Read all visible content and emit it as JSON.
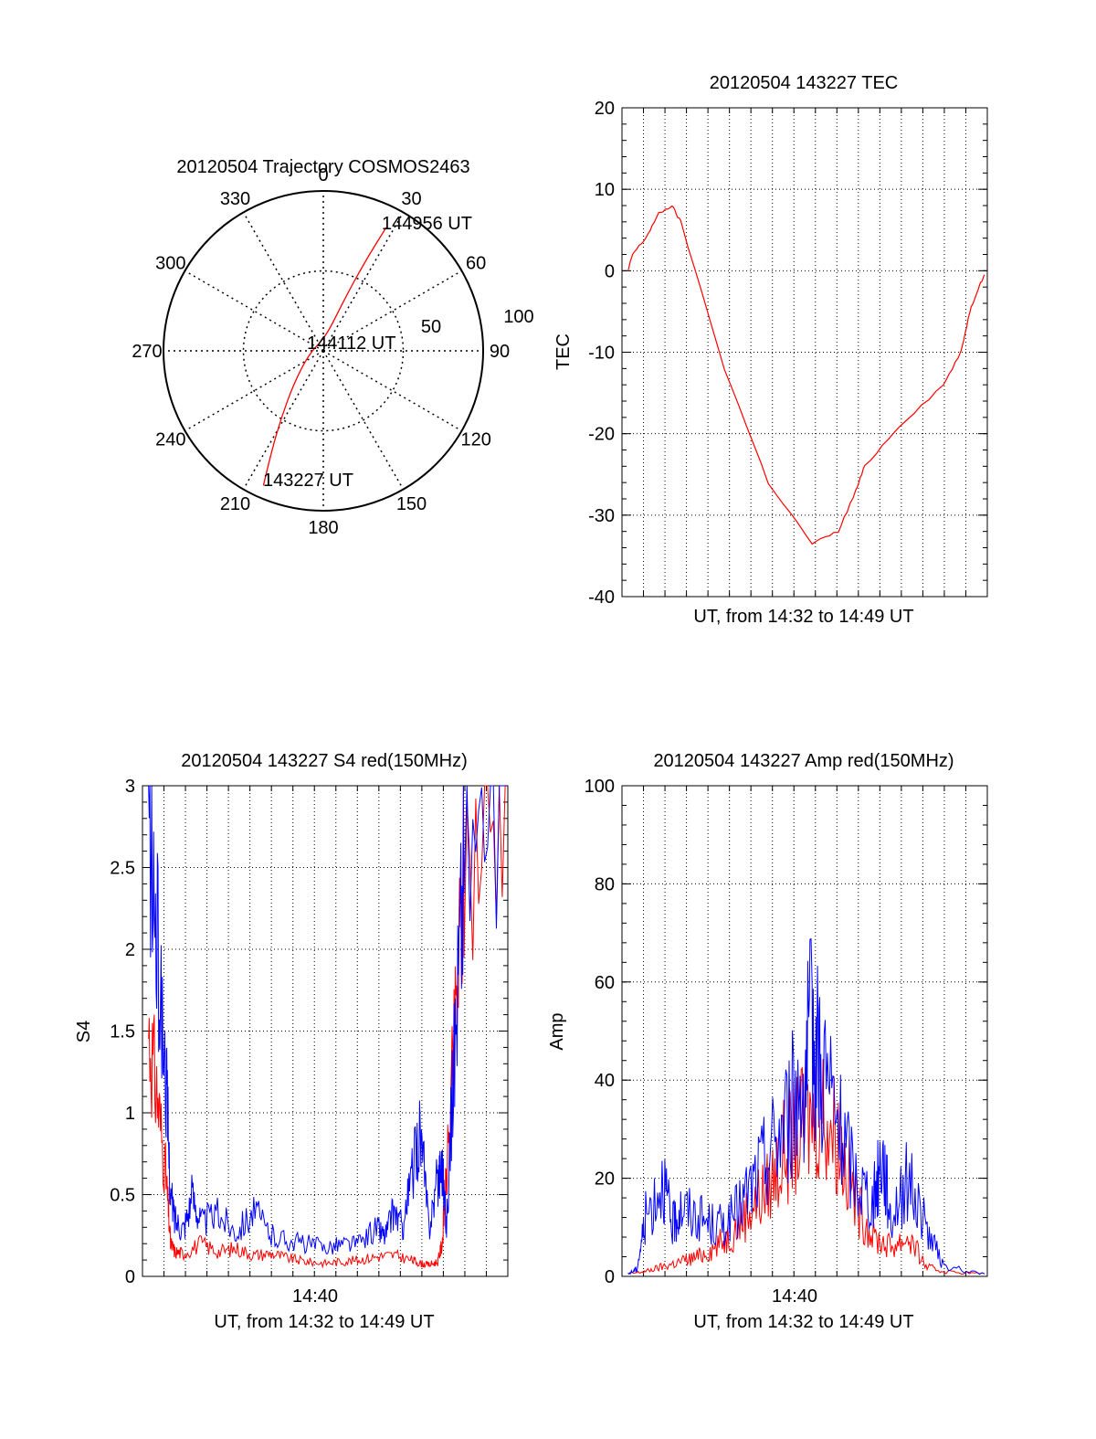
{
  "chart_data": [
    {
      "type": "polar",
      "title": "20120504 Trajectory COSMOS2463",
      "azimuth_labels": [
        "0",
        "30",
        "60",
        "90",
        "120",
        "150",
        "180",
        "210",
        "240",
        "270",
        "300",
        "330"
      ],
      "radial_labels": [
        "50",
        "100"
      ],
      "grid": true,
      "line_color": "#ff0000",
      "annotations": {
        "start": "143227 UT",
        "middle": "144112 UT",
        "end": "144956 UT"
      },
      "trajectory": [
        {
          "azimuth": 204,
          "zenith": 83
        },
        {
          "azimuth": 207,
          "zenith": 65
        },
        {
          "azimuth": 212,
          "zenith": 45
        },
        {
          "azimuth": 222,
          "zenith": 25
        },
        {
          "azimuth": 260,
          "zenith": 8
        },
        {
          "azimuth": 10,
          "zenith": 8
        },
        {
          "azimuth": 22,
          "zenith": 30
        },
        {
          "azimuth": 25,
          "zenith": 55
        },
        {
          "azimuth": 27,
          "zenith": 78
        }
      ]
    },
    {
      "type": "line",
      "title": "20120504 143227 TEC",
      "xlabel": "UT, from 14:32 to 14:49 UT",
      "ylabel": "TEC",
      "ylim": [
        -40,
        20
      ],
      "yticks": [
        "20",
        "10",
        "0",
        "-10",
        "-20",
        "-30",
        "-40"
      ],
      "grid": true,
      "series": [
        {
          "color": "#ff0000",
          "x": [
            14.54,
            14.545,
            14.56,
            14.575,
            14.59,
            14.6,
            14.65,
            14.7,
            14.75,
            14.78,
            14.8,
            14.81,
            14.85,
            14.9,
            14.92,
            14.93,
            14.94,
            14.947
          ],
          "values": [
            0,
            2,
            4,
            7,
            8,
            6,
            -12,
            -26,
            -33.5,
            -32,
            -27,
            -24,
            -19,
            -14,
            -10,
            -5,
            -2,
            -0.5
          ]
        }
      ]
    },
    {
      "type": "line",
      "title": "20120504 143227 S4 red(150MHz)",
      "xlabel": "UT, from 14:32 to 14:49 UT",
      "ylabel": "S4",
      "ylim": [
        0,
        3
      ],
      "yticks": [
        "0",
        "0.5",
        "1",
        "1.5",
        "2",
        "2.5",
        "3"
      ],
      "xticks": [
        "14:40"
      ],
      "grid": true,
      "series": [
        {
          "color": "#ff0000",
          "x": [
            14.54,
            14.55,
            14.56,
            14.565,
            14.57,
            14.58,
            14.6,
            14.62,
            14.64,
            14.66,
            14.68,
            14.7,
            14.72,
            14.74,
            14.76,
            14.78,
            14.8,
            14.82,
            14.84,
            14.85,
            14.86,
            14.87,
            14.875,
            14.88,
            14.89,
            14.9,
            14.947
          ],
          "values": [
            1.5,
            1.1,
            0.6,
            0.2,
            0.15,
            0.14,
            0.2,
            0.15,
            0.17,
            0.13,
            0.14,
            0.11,
            0.09,
            0.08,
            0.09,
            0.1,
            0.12,
            0.13,
            0.1,
            0.08,
            0.07,
            0.09,
            0.2,
            0.6,
            1.5,
            2.5,
            3
          ]
        },
        {
          "color": "#0000ff",
          "x": [
            14.54,
            14.55,
            14.56,
            14.565,
            14.57,
            14.58,
            14.59,
            14.6,
            14.62,
            14.64,
            14.66,
            14.68,
            14.7,
            14.72,
            14.74,
            14.76,
            14.78,
            14.8,
            14.81,
            14.82,
            14.83,
            14.84,
            14.85,
            14.86,
            14.87,
            14.875,
            14.88,
            14.89,
            14.9,
            14.947
          ],
          "values": [
            2.8,
            2.0,
            1.2,
            0.5,
            0.35,
            0.3,
            0.5,
            0.33,
            0.38,
            0.28,
            0.4,
            0.25,
            0.22,
            0.2,
            0.18,
            0.2,
            0.2,
            0.3,
            0.25,
            0.4,
            0.3,
            0.6,
            0.9,
            0.3,
            0.6,
            0.7,
            0.3,
            1.5,
            2.6,
            3
          ]
        }
      ]
    },
    {
      "type": "line",
      "title": "20120504 143227 Amp red(150MHz)",
      "xlabel": "UT, from 14:32 to 14:49 UT",
      "ylabel": "Amp",
      "ylim": [
        0,
        100
      ],
      "yticks": [
        "0",
        "20",
        "40",
        "60",
        "80",
        "100"
      ],
      "xticks": [
        "14:40"
      ],
      "grid": true,
      "series": [
        {
          "color": "#ff0000",
          "x": [
            14.54,
            14.56,
            14.58,
            14.6,
            14.62,
            14.64,
            14.66,
            14.68,
            14.7,
            14.72,
            14.74,
            14.76,
            14.78,
            14.8,
            14.82,
            14.84,
            14.86,
            14.88,
            14.9,
            14.947
          ],
          "values": [
            0.5,
            1,
            2,
            3,
            4,
            6,
            9,
            14,
            18,
            26,
            30,
            35,
            28,
            15,
            8,
            6,
            8,
            2,
            1,
            0.5
          ]
        },
        {
          "color": "#0000ff",
          "x": [
            14.54,
            14.55,
            14.56,
            14.58,
            14.59,
            14.6,
            14.62,
            14.64,
            14.66,
            14.68,
            14.7,
            14.72,
            14.74,
            14.75,
            14.76,
            14.78,
            14.8,
            14.82,
            14.83,
            14.84,
            14.86,
            14.88,
            14.9,
            14.947
          ],
          "values": [
            0.5,
            1.5,
            12,
            20,
            10,
            14,
            12,
            10,
            12,
            18,
            25,
            32,
            40,
            50,
            45,
            30,
            20,
            15,
            25,
            12,
            20,
            10,
            2,
            0.5
          ]
        }
      ]
    }
  ]
}
